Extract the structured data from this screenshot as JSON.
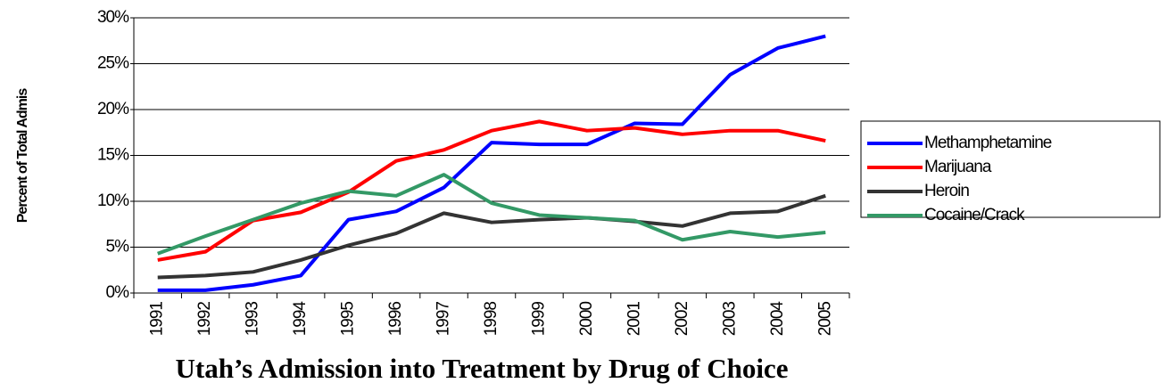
{
  "chart_data": {
    "type": "line",
    "title": "Utah’s Admission into Treatment by Drug of Choice",
    "y_label": "Percent of Total Admis",
    "categories": [
      "1991",
      "1992",
      "1993",
      "1994",
      "1995",
      "1996",
      "1997",
      "1998",
      "1999",
      "2000",
      "2001",
      "2002",
      "2003",
      "2004",
      "2005"
    ],
    "series": [
      {
        "name": "Methamphetamine",
        "color": "#0000ff",
        "values": [
          0.3,
          0.3,
          0.9,
          1.9,
          8.0,
          8.9,
          11.5,
          16.4,
          16.2,
          16.2,
          18.5,
          18.4,
          23.8,
          26.7,
          28.0
        ]
      },
      {
        "name": "Marijuana",
        "color": "#ff0000",
        "values": [
          3.6,
          4.5,
          7.9,
          8.8,
          11.0,
          14.4,
          15.6,
          17.7,
          18.7,
          17.7,
          18.0,
          17.3,
          17.7,
          17.7,
          16.6
        ]
      },
      {
        "name": "Heroin",
        "color": "#333333",
        "values": [
          1.7,
          1.9,
          2.3,
          3.6,
          5.2,
          6.5,
          8.7,
          7.7,
          8.0,
          8.2,
          7.8,
          7.3,
          8.7,
          8.9,
          10.6
        ]
      },
      {
        "name": "Cocaine/Crack",
        "color": "#339966",
        "values": [
          4.3,
          6.2,
          8.0,
          9.8,
          11.1,
          10.6,
          12.9,
          9.8,
          8.5,
          8.2,
          7.9,
          5.8,
          6.7,
          6.1,
          6.6
        ]
      }
    ],
    "ylim": [
      0,
      30
    ],
    "yticks": [
      {
        "value": 0,
        "label": "0%"
      },
      {
        "value": 5,
        "label": "5%"
      },
      {
        "value": 10,
        "label": "10%"
      },
      {
        "value": 15,
        "label": "15%"
      },
      {
        "value": 20,
        "label": "20%"
      },
      {
        "value": 25,
        "label": "25%"
      },
      {
        "value": 30,
        "label": "30%"
      }
    ],
    "grid": true,
    "legend": "right"
  }
}
